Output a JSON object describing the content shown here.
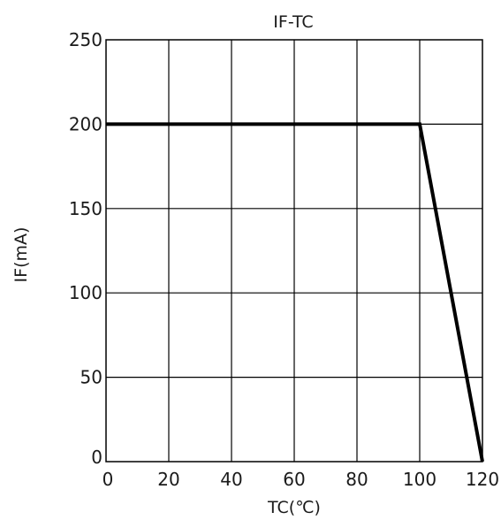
{
  "chart_data": {
    "type": "line",
    "title": "IF-TC",
    "xlabel": "TC(℃)",
    "ylabel": "IF(mA)",
    "xlim": [
      0,
      120
    ],
    "ylim": [
      0,
      250
    ],
    "x_ticks": [
      0,
      20,
      40,
      60,
      80,
      100,
      120
    ],
    "y_ticks": [
      0,
      50,
      100,
      150,
      200,
      250
    ],
    "grid": true,
    "series": [
      {
        "x": [
          0,
          100,
          120
        ],
        "y": [
          200,
          200,
          0
        ]
      }
    ]
  },
  "colors": {
    "line": "#000000",
    "grid": "#000000",
    "background": "#ffffff"
  }
}
